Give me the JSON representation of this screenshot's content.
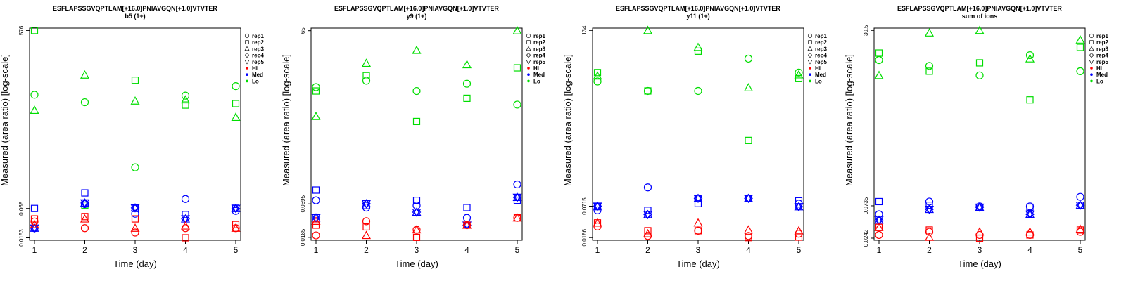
{
  "chart_data": [
    {
      "type": "scatter",
      "title": "ESFLAPSSGVQPTLAM[+16.0]PNIAVGQN[+1.0]VTVTER",
      "subtitle": "b5 (1+)",
      "xlabel": "Time (day)",
      "ylabel": "Measured (area ratio) [log-scale]",
      "yscale": "log",
      "x_ticks": [
        "1",
        "2",
        "3",
        "4",
        "5"
      ],
      "y_ticks": [
        "0.0153",
        "0.068",
        "576"
      ],
      "ylim": [
        0.0135,
        650
      ],
      "legend": {
        "position": "top-right",
        "entries": [
          {
            "label": "rep1",
            "marker": "circle"
          },
          {
            "label": "rep2",
            "marker": "square"
          },
          {
            "label": "rep3",
            "marker": "triangle-up"
          },
          {
            "label": "rep4",
            "marker": "diamond"
          },
          {
            "label": "rep5",
            "marker": "triangle-down"
          },
          {
            "label": "Hi",
            "color": "#ff0000"
          },
          {
            "label": "Med",
            "color": "#0000ff"
          },
          {
            "label": "Lo",
            "color": "#00dd00"
          }
        ]
      },
      "colors": {
        "Hi": "#ff0000",
        "Med": "#0000ff",
        "Lo": "#00dd00"
      },
      "series": [
        {
          "group": "Lo",
          "rep": "rep1",
          "x": [
            1,
            2,
            3,
            4,
            5
          ],
          "y": [
            22,
            15,
            0.55,
            21,
            34
          ]
        },
        {
          "group": "Lo",
          "rep": "rep2",
          "x": [
            1,
            2,
            3,
            4,
            5
          ],
          "y": [
            576,
            0.08,
            46,
            13,
            14
          ]
        },
        {
          "group": "Lo",
          "rep": "rep3",
          "x": [
            1,
            2,
            3,
            4,
            5
          ],
          "y": [
            10,
            60,
            16,
            17,
            7
          ]
        },
        {
          "group": "Med",
          "rep": "rep1",
          "x": [
            1,
            2,
            3,
            4,
            5
          ],
          "y": [
            0.025,
            0.085,
            0.052,
            0.11,
            0.06
          ]
        },
        {
          "group": "Med",
          "rep": "rep2",
          "x": [
            1,
            2,
            3,
            4,
            5
          ],
          "y": [
            0.068,
            0.15,
            0.068,
            0.05,
            0.069
          ]
        },
        {
          "group": "Med",
          "rep": "rep3",
          "x": [
            1,
            2,
            3,
            4,
            5
          ],
          "y": [
            0.025,
            0.09,
            0.07,
            0.04,
            0.068
          ]
        },
        {
          "group": "Med",
          "rep": "rep4",
          "x": [
            1,
            2,
            3,
            4,
            5
          ],
          "y": [
            0.025,
            0.09,
            0.07,
            0.04,
            0.068
          ]
        },
        {
          "group": "Med",
          "rep": "rep5",
          "x": [
            1,
            2,
            3,
            4,
            5
          ],
          "y": [
            0.025,
            0.09,
            0.07,
            0.04,
            0.068
          ]
        },
        {
          "group": "Hi",
          "rep": "rep1",
          "x": [
            1,
            2,
            3,
            4,
            5
          ],
          "y": [
            0.035,
            0.025,
            0.02,
            0.025,
            0.025
          ]
        },
        {
          "group": "Hi",
          "rep": "rep2",
          "x": [
            1,
            2,
            3,
            4,
            5
          ],
          "y": [
            0.04,
            0.045,
            0.04,
            0.0153,
            0.03
          ]
        },
        {
          "group": "Hi",
          "rep": "rep3",
          "x": [
            1,
            2,
            3,
            4,
            5
          ],
          "y": [
            0.03,
            0.04,
            0.025,
            0.028,
            0.025
          ]
        }
      ]
    },
    {
      "type": "scatter",
      "title": "ESFLAPSSGVQPTLAM[+16.0]PNIAVGQN[+1.0]VTVTER",
      "subtitle": "y9 (1+)",
      "xlabel": "Time (day)",
      "ylabel": "Measured (area ratio) [log-scale]",
      "yscale": "log",
      "x_ticks": [
        "1",
        "2",
        "3",
        "4",
        "5"
      ],
      "y_ticks": [
        "0.0185",
        "0.0695",
        "65"
      ],
      "ylim": [
        0.0165,
        72
      ],
      "legend": {
        "position": "top-right",
        "entries": [
          {
            "label": "rep1",
            "marker": "circle"
          },
          {
            "label": "rep2",
            "marker": "square"
          },
          {
            "label": "rep3",
            "marker": "triangle-up"
          },
          {
            "label": "rep4",
            "marker": "diamond"
          },
          {
            "label": "rep5",
            "marker": "triangle-down"
          },
          {
            "label": "Hi",
            "color": "#ff0000"
          },
          {
            "label": "Med",
            "color": "#0000ff"
          },
          {
            "label": "Lo",
            "color": "#00dd00"
          }
        ]
      },
      "colors": {
        "Hi": "#ff0000",
        "Med": "#0000ff",
        "Lo": "#00dd00"
      },
      "series": [
        {
          "group": "Lo",
          "rep": "rep1",
          "x": [
            1,
            2,
            3,
            4,
            5
          ],
          "y": [
            7,
            9,
            6,
            8,
            3.5
          ]
        },
        {
          "group": "Lo",
          "rep": "rep2",
          "x": [
            1,
            2,
            3,
            4,
            5
          ],
          "y": [
            6,
            11,
            1.8,
            4.5,
            15
          ]
        },
        {
          "group": "Lo",
          "rep": "rep3",
          "x": [
            1,
            2,
            3,
            4,
            5
          ],
          "y": [
            2.2,
            18,
            30,
            17,
            65
          ]
        },
        {
          "group": "Med",
          "rep": "rep1",
          "x": [
            1,
            2,
            3,
            4,
            5
          ],
          "y": [
            0.08,
            0.06,
            0.065,
            0.04,
            0.15
          ]
        },
        {
          "group": "Med",
          "rep": "rep2",
          "x": [
            1,
            2,
            3,
            4,
            5
          ],
          "y": [
            0.12,
            0.065,
            0.08,
            0.06,
            0.08
          ]
        },
        {
          "group": "Med",
          "rep": "rep3",
          "x": [
            1,
            2,
            3,
            4,
            5
          ],
          "y": [
            0.04,
            0.07,
            0.05,
            0.03,
            0.09
          ]
        },
        {
          "group": "Med",
          "rep": "rep4",
          "x": [
            1,
            2,
            3,
            4,
            5
          ],
          "y": [
            0.04,
            0.07,
            0.05,
            0.03,
            0.09
          ]
        },
        {
          "group": "Med",
          "rep": "rep5",
          "x": [
            1,
            2,
            3,
            4,
            5
          ],
          "y": [
            0.04,
            0.07,
            0.05,
            0.03,
            0.09
          ]
        },
        {
          "group": "Hi",
          "rep": "rep1",
          "x": [
            1,
            2,
            3,
            4,
            5
          ],
          "y": [
            0.02,
            0.035,
            0.025,
            0.03,
            0.04
          ]
        },
        {
          "group": "Hi",
          "rep": "rep2",
          "x": [
            1,
            2,
            3,
            4,
            5
          ],
          "y": [
            0.03,
            0.028,
            0.0185,
            0.03,
            0.04
          ]
        },
        {
          "group": "Hi",
          "rep": "rep3",
          "x": [
            1,
            2,
            3,
            4,
            5
          ],
          "y": [
            0.035,
            0.02,
            0.025,
            0.03,
            0.04
          ]
        }
      ]
    },
    {
      "type": "scatter",
      "title": "ESFLAPSSGVQPTLAM[+16.0]PNIAVGQN[+1.0]VTVTER",
      "subtitle": "y11 (1+)",
      "xlabel": "Time (day)",
      "ylabel": "Measured (area ratio) [log-scale]",
      "yscale": "log",
      "x_ticks": [
        "1",
        "2",
        "3",
        "4",
        "5"
      ],
      "y_ticks": [
        "0.0186",
        "0.0715",
        "134"
      ],
      "ylim": [
        0.0166,
        148
      ],
      "legend": {
        "position": "top-right",
        "entries": [
          {
            "label": "rep1",
            "marker": "circle"
          },
          {
            "label": "rep2",
            "marker": "square"
          },
          {
            "label": "rep3",
            "marker": "triangle-up"
          },
          {
            "label": "rep4",
            "marker": "diamond"
          },
          {
            "label": "rep5",
            "marker": "triangle-down"
          },
          {
            "label": "Hi",
            "color": "#ff0000"
          },
          {
            "label": "Med",
            "color": "#0000ff"
          },
          {
            "label": "Lo",
            "color": "#00dd00"
          }
        ]
      },
      "colors": {
        "Hi": "#ff0000",
        "Med": "#0000ff",
        "Lo": "#00dd00"
      },
      "series": [
        {
          "group": "Lo",
          "rep": "rep1",
          "x": [
            1,
            2,
            3,
            4,
            5
          ],
          "y": [
            15,
            10,
            10,
            40,
            22
          ]
        },
        {
          "group": "Lo",
          "rep": "rep2",
          "x": [
            1,
            2,
            3,
            4,
            5
          ],
          "y": [
            22,
            10,
            55,
            1.2,
            17
          ]
        },
        {
          "group": "Lo",
          "rep": "rep3",
          "x": [
            1,
            2,
            3,
            4,
            5
          ],
          "y": [
            19,
            134,
            65,
            11.5,
            20
          ]
        },
        {
          "group": "Med",
          "rep": "rep1",
          "x": [
            1,
            2,
            3,
            4,
            5
          ],
          "y": [
            0.06,
            0.16,
            0.1,
            0.1,
            0.08
          ]
        },
        {
          "group": "Med",
          "rep": "rep2",
          "x": [
            1,
            2,
            3,
            4,
            5
          ],
          "y": [
            0.07,
            0.06,
            0.08,
            0.1,
            0.09
          ]
        },
        {
          "group": "Med",
          "rep": "rep3",
          "x": [
            1,
            2,
            3,
            4,
            5
          ],
          "y": [
            0.0715,
            0.05,
            0.1,
            0.1,
            0.07
          ]
        },
        {
          "group": "Med",
          "rep": "rep4",
          "x": [
            1,
            2,
            3,
            4,
            5
          ],
          "y": [
            0.0715,
            0.05,
            0.1,
            0.1,
            0.07
          ]
        },
        {
          "group": "Med",
          "rep": "rep5",
          "x": [
            1,
            2,
            3,
            4,
            5
          ],
          "y": [
            0.0715,
            0.05,
            0.1,
            0.1,
            0.07
          ]
        },
        {
          "group": "Hi",
          "rep": "rep1",
          "x": [
            1,
            2,
            3,
            4,
            5
          ],
          "y": [
            0.03,
            0.02,
            0.025,
            0.02,
            0.022
          ]
        },
        {
          "group": "Hi",
          "rep": "rep2",
          "x": [
            1,
            2,
            3,
            4,
            5
          ],
          "y": [
            0.035,
            0.025,
            0.025,
            0.0186,
            0.019
          ]
        },
        {
          "group": "Hi",
          "rep": "rep3",
          "x": [
            1,
            2,
            3,
            4,
            5
          ],
          "y": [
            0.035,
            0.022,
            0.035,
            0.026,
            0.025
          ]
        }
      ]
    },
    {
      "type": "scatter",
      "title": "ESFLAPSSGVQPTLAM[+16.0]PNIAVGQN[+1.0]VTVTER",
      "subtitle": "sum of ions",
      "xlabel": "Time (day)",
      "ylabel": "Measured (area ratio) [log-scale]",
      "yscale": "log",
      "x_ticks": [
        "1",
        "2",
        "3",
        "4",
        "5"
      ],
      "y_ticks": [
        "0.0242",
        "0.0735",
        "30.5"
      ],
      "ylim": [
        0.0225,
        33
      ],
      "legend": {
        "position": "top-right",
        "entries": [
          {
            "label": "rep1",
            "marker": "circle"
          },
          {
            "label": "rep2",
            "marker": "square"
          },
          {
            "label": "rep3",
            "marker": "triangle-up"
          },
          {
            "label": "rep4",
            "marker": "diamond"
          },
          {
            "label": "rep5",
            "marker": "triangle-down"
          },
          {
            "label": "Hi",
            "color": "#ff0000"
          },
          {
            "label": "Med",
            "color": "#0000ff"
          },
          {
            "label": "Lo",
            "color": "#00dd00"
          }
        ]
      },
      "colors": {
        "Hi": "#ff0000",
        "Med": "#0000ff",
        "Lo": "#00dd00"
      },
      "series": [
        {
          "group": "Lo",
          "rep": "rep1",
          "x": [
            1,
            2,
            3,
            4,
            5
          ],
          "y": [
            11,
            9,
            6.5,
            13,
            7.5
          ]
        },
        {
          "group": "Lo",
          "rep": "rep2",
          "x": [
            1,
            2,
            3,
            4,
            5
          ],
          "y": [
            14,
            7.5,
            10,
            2.8,
            17
          ]
        },
        {
          "group": "Lo",
          "rep": "rep3",
          "x": [
            1,
            2,
            3,
            4,
            5
          ],
          "y": [
            6.5,
            28,
            30.5,
            11.5,
            22
          ]
        },
        {
          "group": "Med",
          "rep": "rep1",
          "x": [
            1,
            2,
            3,
            4,
            5
          ],
          "y": [
            0.055,
            0.085,
            0.072,
            0.072,
            0.1
          ]
        },
        {
          "group": "Med",
          "rep": "rep2",
          "x": [
            1,
            2,
            3,
            4,
            5
          ],
          "y": [
            0.085,
            0.075,
            0.07,
            0.07,
            0.075
          ]
        },
        {
          "group": "Med",
          "rep": "rep3",
          "x": [
            1,
            2,
            3,
            4,
            5
          ],
          "y": [
            0.045,
            0.065,
            0.07,
            0.055,
            0.075
          ]
        },
        {
          "group": "Med",
          "rep": "rep4",
          "x": [
            1,
            2,
            3,
            4,
            5
          ],
          "y": [
            0.045,
            0.065,
            0.07,
            0.055,
            0.075
          ]
        },
        {
          "group": "Med",
          "rep": "rep5",
          "x": [
            1,
            2,
            3,
            4,
            5
          ],
          "y": [
            0.045,
            0.065,
            0.07,
            0.055,
            0.075
          ]
        },
        {
          "group": "Hi",
          "rep": "rep1",
          "x": [
            1,
            2,
            3,
            4,
            5
          ],
          "y": [
            0.027,
            0.03,
            0.027,
            0.027,
            0.03
          ]
        },
        {
          "group": "Hi",
          "rep": "rep2",
          "x": [
            1,
            2,
            3,
            4,
            5
          ],
          "y": [
            0.035,
            0.032,
            0.0242,
            0.027,
            0.032
          ]
        },
        {
          "group": "Hi",
          "rep": "rep3",
          "x": [
            1,
            2,
            3,
            4,
            5
          ],
          "y": [
            0.035,
            0.025,
            0.03,
            0.03,
            0.033
          ]
        }
      ]
    }
  ]
}
